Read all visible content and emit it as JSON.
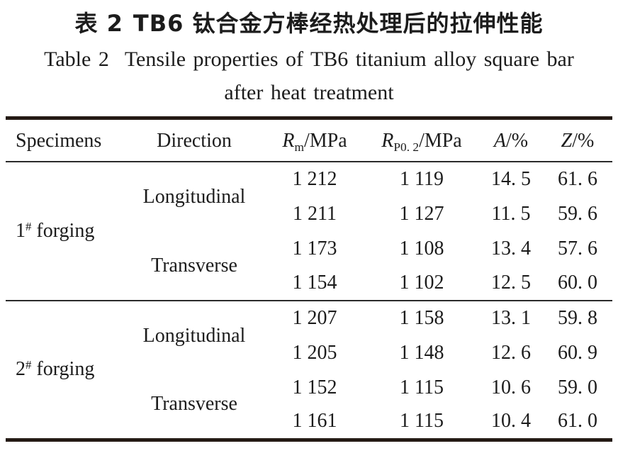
{
  "page": {
    "title_zh_label": "表 2",
    "title_zh_text": "TB6 钛合金方棒经热处理后的拉伸性能",
    "title_en_label": "Table 2",
    "title_en_text": "Tensile properties of TB6 titanium alloy square bar",
    "title_en_text2": "after heat treatment"
  },
  "colors": {
    "text": "#1c1c1c",
    "rule_thick": "#241a14",
    "rule_thin": "#2b2b2b",
    "background": "#ffffff"
  },
  "table": {
    "headers": {
      "specimens": "Specimens",
      "direction": "Direction",
      "rm_base": "R",
      "rm_sub": "m",
      "rm_rest": "/MPa",
      "rp_base": "R",
      "rp_sub": "P0. 2",
      "rp_rest": "/MPa",
      "a_base": "A",
      "a_rest": "/%",
      "z_base": "Z",
      "z_rest": "/%"
    },
    "groups": [
      {
        "specimen": {
          "num": "1",
          "sup": "#",
          "word": "forging"
        },
        "directions": [
          {
            "label": "Longitudinal",
            "rows": [
              [
                "1 212",
                "1 119",
                "14. 5",
                "61. 6"
              ],
              [
                "1 211",
                "1 127",
                "11. 5",
                "59. 6"
              ]
            ]
          },
          {
            "label": "Transverse",
            "rows": [
              [
                "1 173",
                "1 108",
                "13. 4",
                "57. 6"
              ],
              [
                "1 154",
                "1 102",
                "12. 5",
                "60. 0"
              ]
            ]
          }
        ]
      },
      {
        "specimen": {
          "num": "2",
          "sup": "#",
          "word": "forging"
        },
        "directions": [
          {
            "label": "Longitudinal",
            "rows": [
              [
                "1 207",
                "1 158",
                "13. 1",
                "59. 8"
              ],
              [
                "1 205",
                "1 148",
                "12. 6",
                "60. 9"
              ]
            ]
          },
          {
            "label": "Transverse",
            "rows": [
              [
                "1 152",
                "1 115",
                "10. 6",
                "59. 0"
              ],
              [
                "1 161",
                "1 115",
                "10. 4",
                "61. 0"
              ]
            ]
          }
        ]
      }
    ]
  },
  "chart_data": {
    "type": "table",
    "columns": [
      "Specimens",
      "Direction",
      "Rm/MPa",
      "RP0.2/MPa",
      "A/%",
      "Z/%"
    ],
    "rows": [
      [
        "1# forging",
        "Longitudinal",
        1212,
        1119,
        14.5,
        61.6
      ],
      [
        "1# forging",
        "Longitudinal",
        1211,
        1127,
        11.5,
        59.6
      ],
      [
        "1# forging",
        "Transverse",
        1173,
        1108,
        13.4,
        57.6
      ],
      [
        "1# forging",
        "Transverse",
        1154,
        1102,
        12.5,
        60.0
      ],
      [
        "2# forging",
        "Longitudinal",
        1207,
        1158,
        13.1,
        59.8
      ],
      [
        "2# forging",
        "Longitudinal",
        1205,
        1148,
        12.6,
        60.9
      ],
      [
        "2# forging",
        "Transverse",
        1152,
        1115,
        10.6,
        59.0
      ],
      [
        "2# forging",
        "Transverse",
        1161,
        1115,
        10.4,
        61.0
      ]
    ],
    "title": "表 2 TB6 钛合金方棒经热处理后的拉伸性能 / Table 2 Tensile properties of TB6 titanium alloy square bar after heat treatment"
  }
}
